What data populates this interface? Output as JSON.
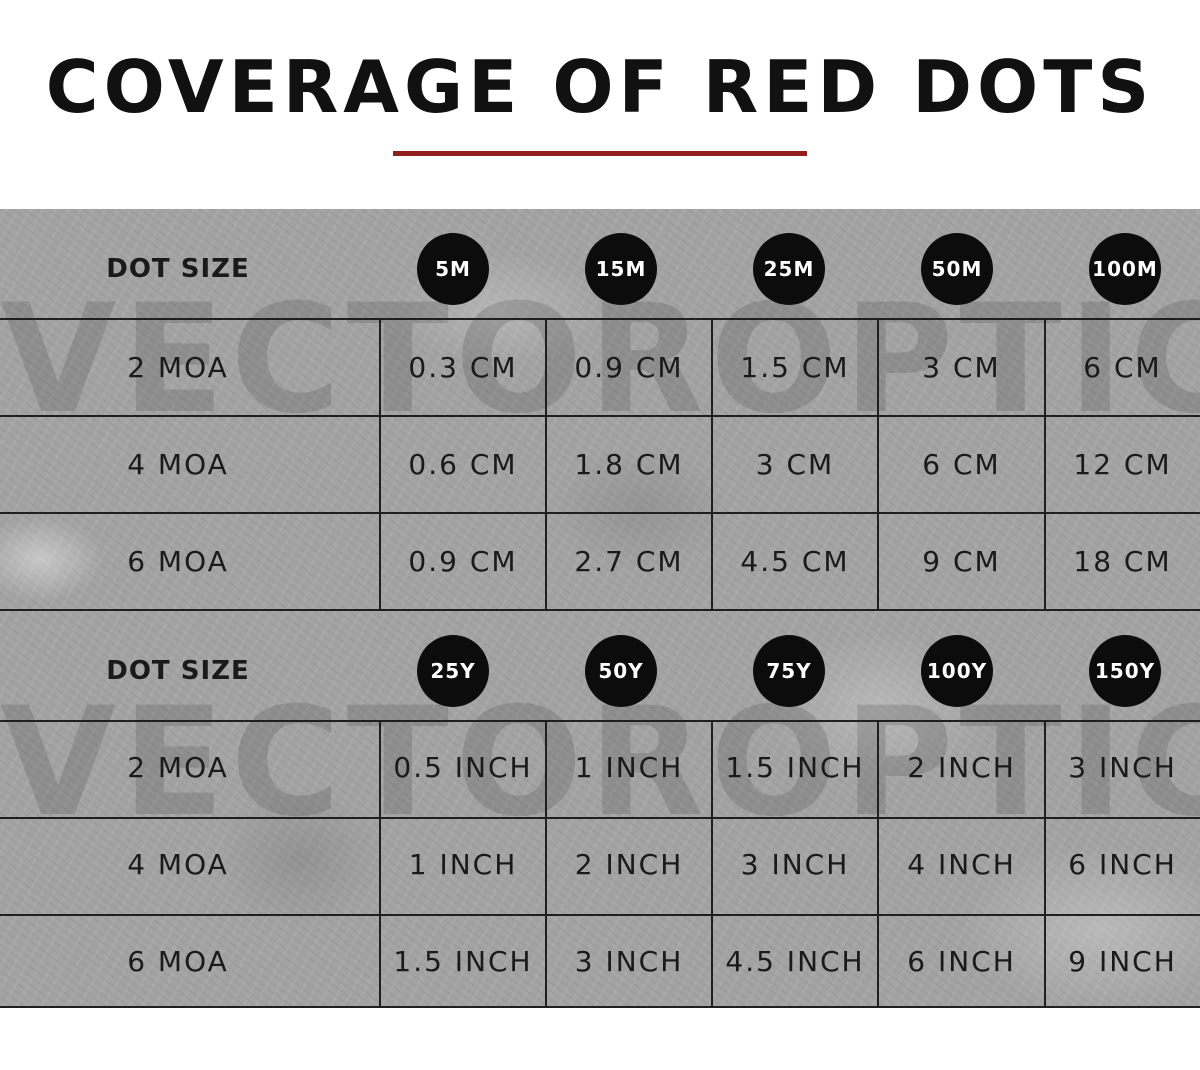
{
  "title": "COVERAGE OF RED DOTS",
  "watermark": "VECTOROPTICS",
  "colors": {
    "accent_rule": "#8e1f1a",
    "dot_fill": "#0c0c0c",
    "panel": "#a3a3a3"
  },
  "metric_table": {
    "header_label": "DOT SIZE",
    "distances": [
      "5M",
      "15M",
      "25M",
      "50M",
      "100M"
    ],
    "rows": [
      {
        "size": "2 MOA",
        "values": [
          "0.3 CM",
          "0.9 CM",
          "1.5 CM",
          "3 CM",
          "6 CM"
        ]
      },
      {
        "size": "4 MOA",
        "values": [
          "0.6 CM",
          "1.8 CM",
          "3 CM",
          "6 CM",
          "12 CM"
        ]
      },
      {
        "size": "6 MOA",
        "values": [
          "0.9 CM",
          "2.7 CM",
          "4.5 CM",
          "9 CM",
          "18 CM"
        ]
      }
    ]
  },
  "imperial_table": {
    "header_label": "DOT SIZE",
    "distances": [
      "25Y",
      "50Y",
      "75Y",
      "100Y",
      "150Y"
    ],
    "rows": [
      {
        "size": "2 MOA",
        "values": [
          "0.5 INCH",
          "1 INCH",
          "1.5 INCH",
          "2 INCH",
          "3 INCH"
        ]
      },
      {
        "size": "4 MOA",
        "values": [
          "1 INCH",
          "2 INCH",
          "3 INCH",
          "4 INCH",
          "6 INCH"
        ]
      },
      {
        "size": "6 MOA",
        "values": [
          "1.5 INCH",
          "3 INCH",
          "4.5 INCH",
          "6 INCH",
          "9 INCH"
        ]
      }
    ]
  }
}
